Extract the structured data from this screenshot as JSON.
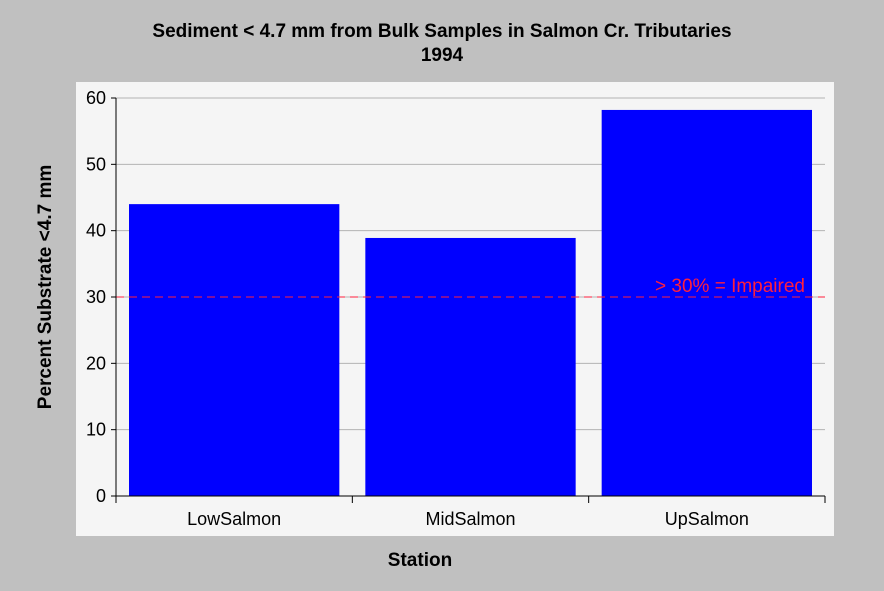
{
  "chart_data": {
    "type": "bar",
    "title": "Sediment < 4.7 mm from Bulk Samples in Salmon Cr. Tributaries",
    "subtitle": "1994",
    "xlabel": "Station",
    "ylabel": "Percent Substrate <4.7 mm",
    "categories": [
      "LowSalmon",
      "MidSalmon",
      "UpSalmon"
    ],
    "values": [
      44,
      38.9,
      58.2
    ],
    "ylim": [
      0,
      60
    ],
    "yticks": [
      0,
      10,
      20,
      30,
      40,
      50,
      60
    ],
    "grid": true,
    "reference_line": {
      "y": 30,
      "label": "> 30% = Impaired",
      "color": "#ff1f3d",
      "style": "dashed"
    },
    "colors": {
      "bar": "#0000ff",
      "plot_bg": "#f5f5f5",
      "figure_bg": "#c0c0c0",
      "grid": "#b4b4b4"
    }
  }
}
